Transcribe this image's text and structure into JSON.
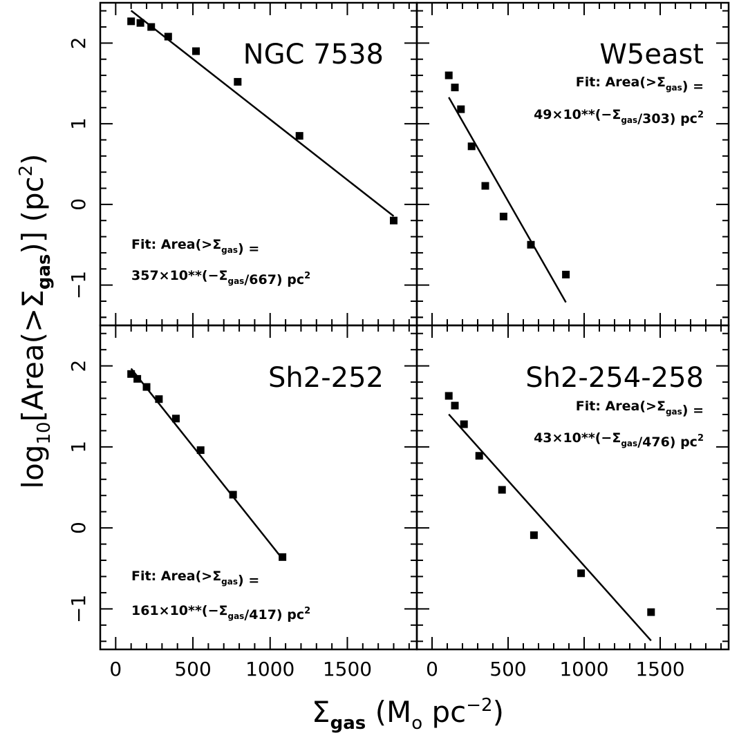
{
  "chart_data": [
    {
      "type": "scatter",
      "title": "NGC 7538",
      "fit_line1": "Fit: Area(>Σgas) =",
      "fit_line2": "357×10**(−Σgas/667) pc²",
      "fit_amplitude": 357,
      "fit_scale": 667,
      "fit_xrange": [
        100,
        1800
      ],
      "x": [
        100,
        160,
        230,
        340,
        520,
        790,
        1190,
        1800
      ],
      "y": [
        2.27,
        2.25,
        2.2,
        2.08,
        1.9,
        1.52,
        0.85,
        -0.2
      ]
    },
    {
      "type": "scatter",
      "title": "W5east",
      "fit_line1": "Fit: Area(>Σgas) =",
      "fit_line2": "49×10**(−Σgas/303) pc²",
      "fit_amplitude": 49,
      "fit_scale": 303,
      "fit_xrange": [
        110,
        880
      ],
      "x": [
        110,
        150,
        190,
        260,
        350,
        470,
        650,
        880
      ],
      "y": [
        1.6,
        1.45,
        1.18,
        0.72,
        0.23,
        -0.15,
        -0.5,
        -0.87
      ]
    },
    {
      "type": "scatter",
      "title": "Sh2-252",
      "fit_line1": "Fit: Area(>Σgas) =",
      "fit_line2": "161×10**(−Σgas/417) pc²",
      "fit_amplitude": 161,
      "fit_scale": 417,
      "fit_xrange": [
        100,
        1080
      ],
      "x": [
        100,
        140,
        200,
        280,
        390,
        550,
        760,
        1080
      ],
      "y": [
        1.9,
        1.84,
        1.74,
        1.59,
        1.35,
        0.96,
        0.41,
        -0.36
      ]
    },
    {
      "type": "scatter",
      "title": "Sh2-254-258",
      "fit_line1": "Fit: Area(>Σgas) =",
      "fit_line2": "43×10**(−Σgas/476) pc²",
      "fit_amplitude": 43,
      "fit_scale": 476,
      "fit_xrange": [
        110,
        1440
      ],
      "x": [
        110,
        150,
        210,
        310,
        460,
        670,
        980,
        1440
      ],
      "y": [
        1.63,
        1.51,
        1.28,
        0.89,
        0.47,
        -0.09,
        -0.56,
        -1.04
      ]
    }
  ],
  "axes": {
    "xlim": [
      -100,
      1950
    ],
    "ylim": [
      -1.5,
      2.5
    ],
    "x_tick_labels": [
      "0",
      "500",
      "1000",
      "1500"
    ],
    "x_tick_values": [
      0,
      500,
      1000,
      1500
    ],
    "y_tick_labels": [
      "2",
      "1",
      "0",
      "−1"
    ],
    "y_tick_values": [
      2,
      1,
      0,
      -1
    ],
    "xlabel_main": "Σ",
    "xlabel_sub": "gas",
    "xlabel_rest": " (M",
    "xlabel_o": "o",
    "xlabel_unit": " pc",
    "xlabel_exp": "−2",
    "xlabel_close": ")",
    "ylabel_log": "log",
    "ylabel_log_sub": "10",
    "ylabel_body": "[Area(>Σ",
    "ylabel_gas_sub": "gas",
    "ylabel_close": ")] (pc",
    "ylabel_exp": "2",
    "ylabel_end": ")"
  },
  "colors": {
    "ink": "#000000",
    "background": "#ffffff"
  }
}
